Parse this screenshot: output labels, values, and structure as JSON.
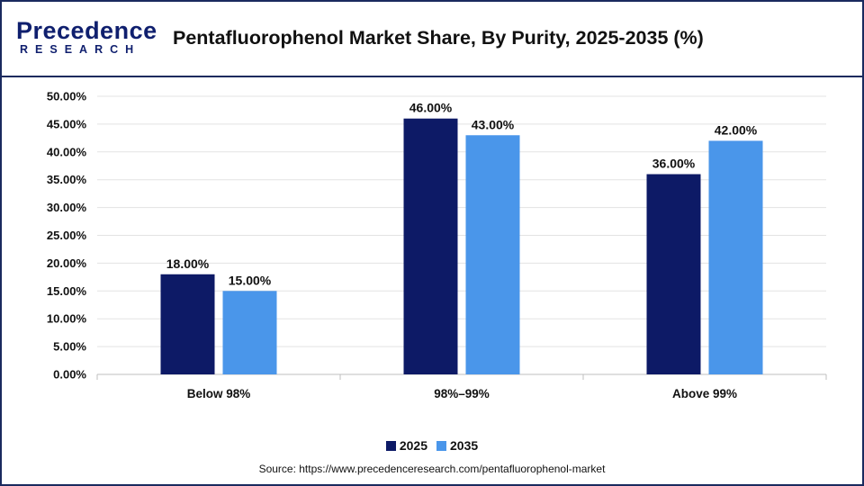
{
  "header": {
    "logo_main": "Precedence",
    "logo_sub": "RESEARCH",
    "title": "Pentafluorophenol Market Share, By Purity, 2025-2035 (%)"
  },
  "colors": {
    "series_2025": "#0d1a66",
    "series_2035": "#4a96ea",
    "brand": "#0f1f6e"
  },
  "chart_data": {
    "type": "bar",
    "title": "Pentafluorophenol Market Share, By Purity, 2025-2035 (%)",
    "categories": [
      "Below 98%",
      "98%–99%",
      "Above 99%"
    ],
    "series": [
      {
        "name": "2025",
        "values": [
          18.0,
          46.0,
          36.0
        ],
        "labels": [
          "18.00%",
          "46.00%",
          "36.00%"
        ]
      },
      {
        "name": "2035",
        "values": [
          15.0,
          43.0,
          42.0
        ],
        "labels": [
          "15.00%",
          "43.00%",
          "42.00%"
        ]
      }
    ],
    "ylim": [
      0,
      50
    ],
    "yticks": [
      "0.00%",
      "5.00%",
      "10.00%",
      "15.00%",
      "20.00%",
      "25.00%",
      "30.00%",
      "35.00%",
      "40.00%",
      "45.00%",
      "50.00%"
    ],
    "grid": true,
    "legend": "bottom-center"
  },
  "legend": {
    "items": [
      {
        "label": "2025"
      },
      {
        "label": "2035"
      }
    ]
  },
  "source": "Source: https://www.precedenceresearch.com/pentafluorophenol-market"
}
